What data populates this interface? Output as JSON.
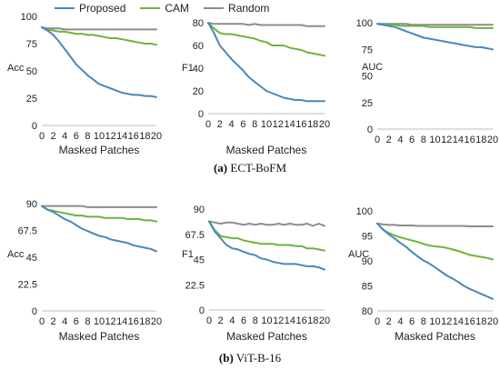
{
  "legend": {
    "items": [
      {
        "label": "Proposed",
        "color": "#4a86bb"
      },
      {
        "label": "CAM",
        "color": "#6cb43a"
      },
      {
        "label": "Random",
        "color": "#8c8c8c"
      }
    ]
  },
  "captions": {
    "top_tag": "(a)",
    "top_text": "ECT-BoFM",
    "bottom_tag": "(b)",
    "bottom_text": "ViT-B-16"
  },
  "chart_data": [
    {
      "type": "line",
      "xlabel": "Masked Patches",
      "ylabel": "Acc",
      "x": [
        0,
        1,
        2,
        3,
        4,
        5,
        6,
        7,
        8,
        9,
        10,
        11,
        12,
        13,
        14,
        15,
        16,
        17,
        18,
        19,
        20
      ],
      "xticks": [
        "0",
        "2",
        "4",
        "6",
        "8",
        "10",
        "12",
        "14",
        "16",
        "18",
        "20"
      ],
      "ylim": [
        0,
        100
      ],
      "yticks": [
        "0",
        "25",
        "50",
        "75",
        "100"
      ],
      "series": [
        {
          "name": "Proposed",
          "color": "#4a86bb",
          "values": [
            90,
            87,
            83,
            77,
            70,
            63,
            56,
            51,
            46,
            42,
            38,
            36,
            34,
            32,
            30,
            29,
            28,
            28,
            27,
            27,
            26
          ]
        },
        {
          "name": "CAM",
          "color": "#6cb43a",
          "values": [
            90,
            88,
            87,
            86,
            86,
            85,
            84,
            84,
            83,
            83,
            82,
            81,
            80,
            80,
            79,
            78,
            77,
            76,
            75,
            75,
            74
          ]
        },
        {
          "name": "Random",
          "color": "#8c8c8c",
          "values": [
            90,
            89,
            89,
            89,
            88,
            88,
            88,
            88,
            88,
            88,
            88,
            88,
            88,
            88,
            88,
            88,
            88,
            88,
            88,
            88,
            88
          ]
        }
      ]
    },
    {
      "type": "line",
      "xlabel": "Masked Patches",
      "ylabel": "F1",
      "x": [
        0,
        1,
        2,
        3,
        4,
        5,
        6,
        7,
        8,
        9,
        10,
        11,
        12,
        13,
        14,
        15,
        16,
        17,
        18,
        19,
        20
      ],
      "xticks": [
        "0",
        "2",
        "4",
        "6",
        "8",
        "10",
        "12",
        "14",
        "16",
        "18",
        "20"
      ],
      "ylim": [
        0,
        80
      ],
      "yticks": [
        "0",
        "20",
        "40",
        "60",
        "80"
      ],
      "series": [
        {
          "name": "Proposed",
          "color": "#4a86bb",
          "values": [
            80,
            71,
            60,
            54,
            48,
            43,
            38,
            32,
            28,
            24,
            20,
            18,
            16,
            14,
            13,
            12,
            12,
            11,
            11,
            11,
            11
          ]
        },
        {
          "name": "CAM",
          "color": "#6cb43a",
          "values": [
            80,
            75,
            71,
            70,
            70,
            69,
            68,
            67,
            66,
            64,
            63,
            60,
            60,
            60,
            58,
            57,
            56,
            54,
            53,
            52,
            51
          ]
        },
        {
          "name": "Random",
          "color": "#8c8c8c",
          "values": [
            80,
            79,
            79,
            79,
            79,
            79,
            79,
            78,
            79,
            78,
            78,
            78,
            78,
            78,
            78,
            78,
            78,
            77,
            77,
            77,
            77
          ]
        }
      ]
    },
    {
      "type": "line",
      "xlabel": "",
      "ylabel": "AUC",
      "x": [
        0,
        1,
        2,
        3,
        4,
        5,
        6,
        7,
        8,
        9,
        10,
        11,
        12,
        13,
        14,
        15,
        16,
        17,
        18,
        19,
        20
      ],
      "xticks": [
        "0",
        "2",
        "4",
        "6",
        "8",
        "10",
        "12",
        "14",
        "16",
        "18",
        "20"
      ],
      "ylim": [
        0,
        100
      ],
      "yticks": [
        "0",
        "25",
        "50",
        "75",
        "100"
      ],
      "series": [
        {
          "name": "Proposed",
          "color": "#4a86bb",
          "values": [
            99,
            98,
            97,
            96,
            94,
            92,
            90,
            88,
            86,
            85,
            84,
            83,
            82,
            81,
            80,
            79,
            78,
            77,
            77,
            76,
            75
          ]
        },
        {
          "name": "CAM",
          "color": "#6cb43a",
          "values": [
            99,
            98,
            98,
            98,
            97,
            97,
            97,
            97,
            97,
            96,
            96,
            96,
            96,
            96,
            96,
            96,
            96,
            95,
            95,
            95,
            95
          ]
        },
        {
          "name": "Random",
          "color": "#8c8c8c",
          "values": [
            99,
            99,
            99,
            99,
            99,
            99,
            98,
            98,
            98,
            98,
            98,
            98,
            98,
            98,
            98,
            98,
            98,
            98,
            98,
            98,
            98
          ]
        }
      ]
    },
    {
      "type": "line",
      "xlabel": "Masked Patches",
      "ylabel": "Acc",
      "x": [
        0,
        1,
        2,
        3,
        4,
        5,
        6,
        7,
        8,
        9,
        10,
        11,
        12,
        13,
        14,
        15,
        16,
        17,
        18,
        19,
        20
      ],
      "xticks": [
        "0",
        "2",
        "4",
        "6",
        "8",
        "10",
        "12",
        "14",
        "16",
        "18",
        "20"
      ],
      "ylim": [
        0,
        90
      ],
      "yticks": [
        "0",
        "22.5",
        "45",
        "67.5",
        "90"
      ],
      "series": [
        {
          "name": "Proposed",
          "color": "#4a86bb",
          "values": [
            88,
            85,
            83,
            80,
            77,
            75,
            72,
            69,
            67,
            65,
            63,
            62,
            60,
            59,
            58,
            57,
            55,
            54,
            53,
            52,
            50
          ]
        },
        {
          "name": "CAM",
          "color": "#6cb43a",
          "values": [
            88,
            85,
            84,
            83,
            82,
            81,
            80,
            80,
            79,
            79,
            79,
            78,
            78,
            78,
            78,
            77,
            77,
            77,
            76,
            76,
            75
          ]
        },
        {
          "name": "Random",
          "color": "#8c8c8c",
          "values": [
            88,
            88,
            88,
            88,
            88,
            88,
            88,
            88,
            87,
            87,
            87,
            87,
            87,
            87,
            87,
            87,
            87,
            87,
            87,
            87,
            87
          ]
        }
      ]
    },
    {
      "type": "line",
      "xlabel": "Masked Patches",
      "ylabel": "F1",
      "x": [
        0,
        1,
        2,
        3,
        4,
        5,
        6,
        7,
        8,
        9,
        10,
        11,
        12,
        13,
        14,
        15,
        16,
        17,
        18,
        19,
        20
      ],
      "xticks": [
        "0",
        "2",
        "4",
        "6",
        "8",
        "10",
        "12",
        "14",
        "16",
        "18",
        "20"
      ],
      "ylim": [
        0,
        90
      ],
      "yticks": [
        "0",
        "22.5",
        "45",
        "67.5",
        "90"
      ],
      "series": [
        {
          "name": "Proposed",
          "color": "#4a86bb",
          "values": [
            79,
            70,
            64,
            58,
            55,
            54,
            52,
            50,
            49,
            46,
            45,
            43,
            42,
            41,
            41,
            41,
            40,
            39,
            39,
            38,
            36
          ]
        },
        {
          "name": "CAM",
          "color": "#6cb43a",
          "values": [
            79,
            71,
            66,
            65,
            64,
            64,
            62,
            61,
            60,
            59,
            59,
            59,
            58,
            58,
            58,
            57,
            57,
            55,
            55,
            54,
            53
          ]
        },
        {
          "name": "Random",
          "color": "#8c8c8c",
          "values": [
            79,
            78,
            77,
            78,
            78,
            77,
            76,
            77,
            76,
            77,
            76,
            76,
            77,
            76,
            77,
            76,
            76,
            77,
            75,
            77,
            75
          ]
        }
      ]
    },
    {
      "type": "line",
      "xlabel": "Masked Patches",
      "ylabel": "AUC",
      "x": [
        0,
        1,
        2,
        3,
        4,
        5,
        6,
        7,
        8,
        9,
        10,
        11,
        12,
        13,
        14,
        15,
        16,
        17,
        18,
        19,
        20
      ],
      "xticks": [
        "0",
        "2",
        "4",
        "6",
        "8",
        "10",
        "12",
        "14",
        "16",
        "18",
        "20"
      ],
      "ylim": [
        80,
        100
      ],
      "yticks": [
        "80",
        "85",
        "90",
        "95",
        "100"
      ],
      "series": [
        {
          "name": "Proposed",
          "color": "#4a86bb",
          "values": [
            97.5,
            96.3,
            95.3,
            94.5,
            93.6,
            92.8,
            91.8,
            90.9,
            90.1,
            89.5,
            88.7,
            87.9,
            87.1,
            86.5,
            85.8,
            85.0,
            84.4,
            83.9,
            83.4,
            82.9,
            82.4
          ]
        },
        {
          "name": "CAM",
          "color": "#6cb43a",
          "values": [
            97.5,
            96.2,
            95.6,
            95.1,
            94.7,
            94.4,
            94.1,
            93.8,
            93.4,
            93.1,
            92.9,
            92.8,
            92.6,
            92.3,
            92.0,
            91.6,
            91.2,
            91.0,
            90.8,
            90.6,
            90.3
          ]
        },
        {
          "name": "Random",
          "color": "#8c8c8c",
          "values": [
            97.5,
            97.3,
            97.2,
            97.2,
            97.1,
            97.1,
            97.1,
            97.0,
            97.0,
            97.0,
            97.0,
            97.0,
            97.0,
            97.0,
            97.0,
            97.0,
            96.9,
            96.9,
            96.9,
            96.9,
            96.9
          ]
        }
      ]
    }
  ]
}
